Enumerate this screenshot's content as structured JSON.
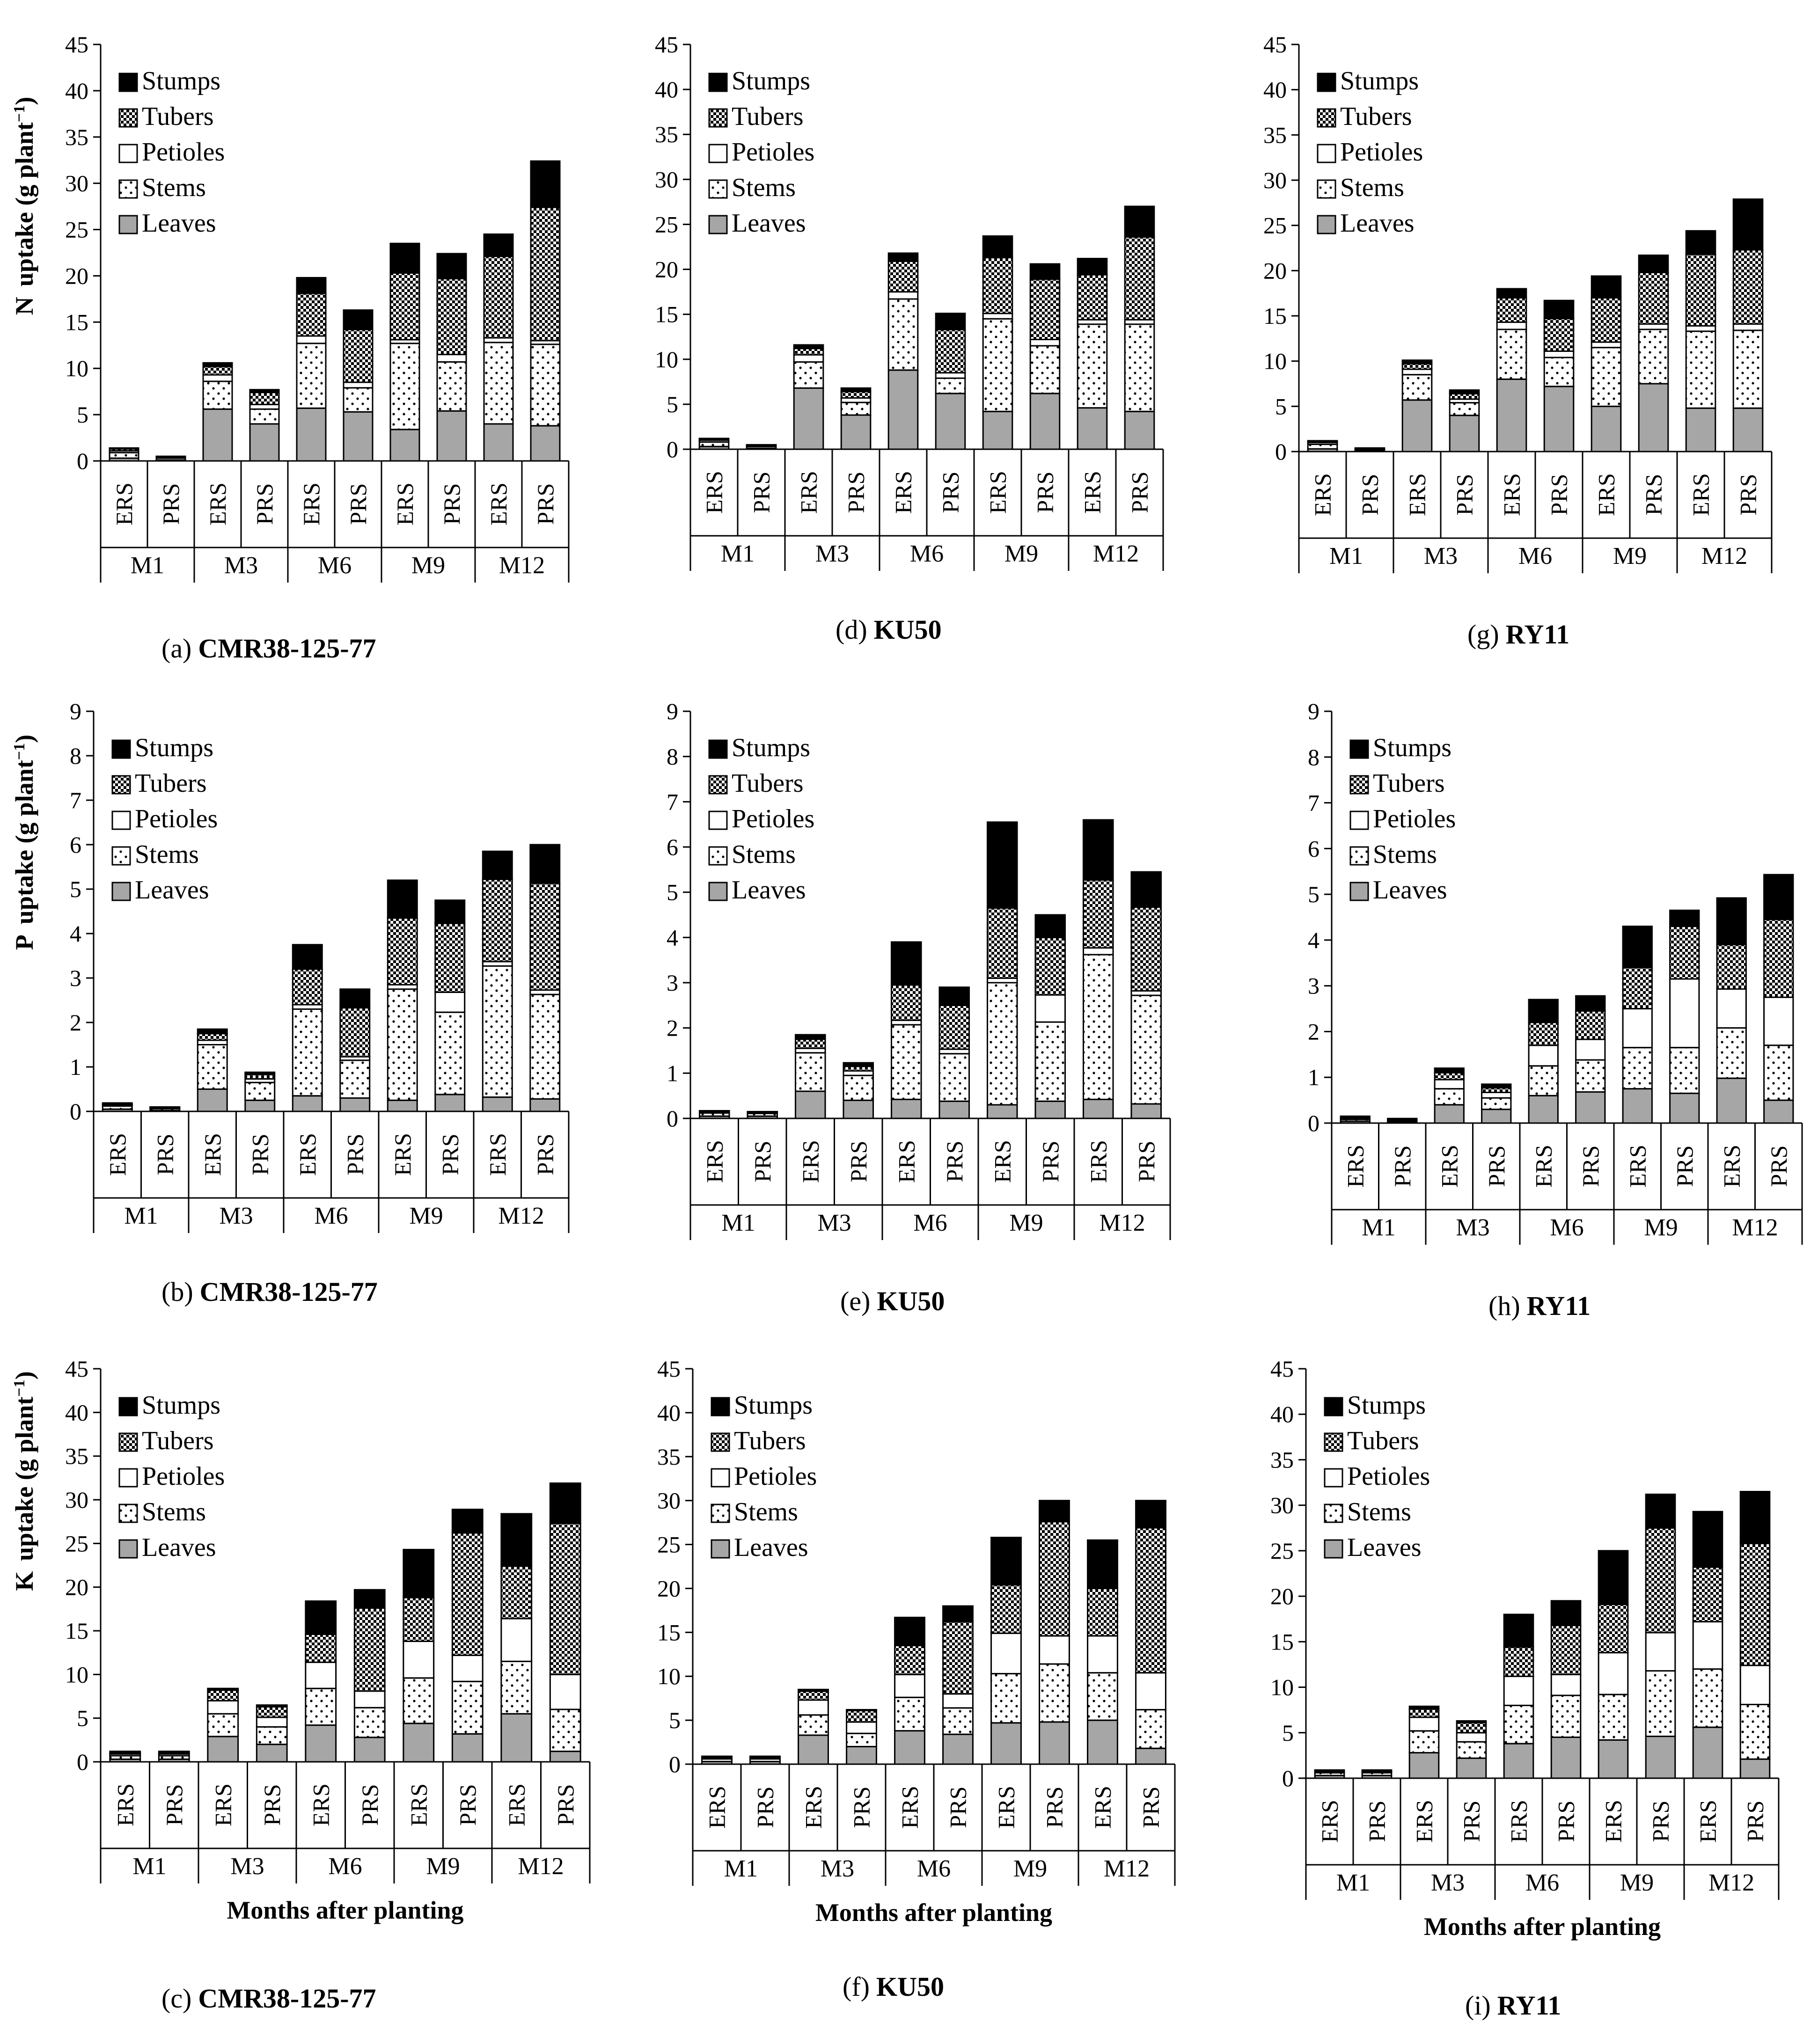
{
  "figure": {
    "layer_names": [
      "Leaves",
      "Stems",
      "Petioles",
      "Tubers",
      "Stumps"
    ],
    "x_axis_title": "Months after planting",
    "group_labels": [
      "M1",
      "M3",
      "M6",
      "M9",
      "M12"
    ],
    "bar_labels": [
      "ERS",
      "PRS"
    ]
  },
  "colors": {
    "Leaves": "#a6a6a6",
    "Stems": "#ffffff",
    "Petioles": "#ffffff",
    "Tubers": "#ffffff",
    "Stumps": "#000000",
    "line": "#000000"
  },
  "chart_data": [
    {
      "id": "a",
      "type": "bar",
      "stacked": true,
      "caption_prefix": "(a)",
      "caption_name": "CMR38-125-77",
      "ylabel_nutrient": "N",
      "ylabel_unit": "uptake (g plant",
      "ylim": [
        0,
        45
      ],
      "ystep": 5,
      "legend_order": [
        "Stumps",
        "Tubers",
        "Petioles",
        "Stems",
        "Leaves"
      ],
      "categories": [
        "ERS",
        "PRS",
        "ERS",
        "PRS",
        "ERS",
        "PRS",
        "ERS",
        "PRS",
        "ERS",
        "PRS"
      ],
      "groups": [
        "M1",
        "M3",
        "M6",
        "M9",
        "M12"
      ],
      "series": [
        {
          "name": "Leaves",
          "values": [
            0.3,
            0.1,
            5.6,
            4.0,
            5.7,
            5.3,
            3.4,
            5.4,
            4.0,
            3.8
          ]
        },
        {
          "name": "Stems",
          "values": [
            0.6,
            0.2,
            3.0,
            1.6,
            7.0,
            2.6,
            9.3,
            5.3,
            8.8,
            8.8
          ]
        },
        {
          "name": "Petioles",
          "values": [
            0.2,
            0.1,
            0.7,
            0.5,
            0.8,
            0.6,
            0.4,
            0.8,
            0.5,
            0.4
          ]
        },
        {
          "name": "Tubers",
          "values": [
            0.2,
            0.0,
            0.9,
            1.3,
            4.6,
            5.7,
            7.2,
            8.2,
            8.8,
            14.4
          ]
        },
        {
          "name": "Stumps",
          "values": [
            0.1,
            0.1,
            0.4,
            0.3,
            1.7,
            2.1,
            3.2,
            2.7,
            2.4,
            5.0
          ]
        }
      ]
    },
    {
      "id": "d",
      "type": "bar",
      "stacked": true,
      "caption_prefix": "(d)",
      "caption_name": "KU50",
      "ylabel_nutrient": "",
      "ylabel_unit": "",
      "ylim": [
        0,
        45
      ],
      "ystep": 5,
      "legend_order": [
        "Stumps",
        "Tubers",
        "Petioles",
        "Stems",
        "Leaves"
      ],
      "categories": [
        "ERS",
        "PRS",
        "ERS",
        "PRS",
        "ERS",
        "PRS",
        "ERS",
        "PRS",
        "ERS",
        "PRS"
      ],
      "groups": [
        "M1",
        "M3",
        "M6",
        "M9",
        "M12"
      ],
      "series": [
        {
          "name": "Leaves",
          "values": [
            0.3,
            0.1,
            6.8,
            3.8,
            8.8,
            6.2,
            4.2,
            6.2,
            4.6,
            4.2
          ]
        },
        {
          "name": "Stems",
          "values": [
            0.5,
            0.2,
            2.9,
            1.4,
            7.9,
            1.7,
            10.3,
            5.3,
            9.3,
            9.7
          ]
        },
        {
          "name": "Petioles",
          "values": [
            0.2,
            0.1,
            0.8,
            0.5,
            0.8,
            0.6,
            0.6,
            0.7,
            0.5,
            0.5
          ]
        },
        {
          "name": "Tubers",
          "values": [
            0.1,
            0.0,
            0.7,
            0.7,
            3.4,
            4.8,
            6.2,
            6.7,
            5.0,
            9.2
          ]
        },
        {
          "name": "Stumps",
          "values": [
            0.1,
            0.1,
            0.4,
            0.4,
            0.9,
            1.8,
            2.4,
            1.7,
            1.8,
            3.4
          ]
        }
      ]
    },
    {
      "id": "g",
      "type": "bar",
      "stacked": true,
      "caption_prefix": "(g)",
      "caption_name": "RY11",
      "ylabel_nutrient": "",
      "ylabel_unit": "",
      "ylim": [
        0,
        45
      ],
      "ystep": 5,
      "legend_order": [
        "Stumps",
        "Tubers",
        "Petioles",
        "Stems",
        "Leaves"
      ],
      "categories": [
        "ERS",
        "PRS",
        "ERS",
        "PRS",
        "ERS",
        "PRS",
        "ERS",
        "PRS",
        "ERS",
        "PRS"
      ],
      "groups": [
        "M1",
        "M3",
        "M6",
        "M9",
        "M12"
      ],
      "series": [
        {
          "name": "Leaves",
          "values": [
            0.3,
            0.1,
            5.7,
            4.0,
            8.0,
            7.2,
            5.0,
            7.5,
            4.8,
            4.8
          ]
        },
        {
          "name": "Stems",
          "values": [
            0.5,
            0.1,
            2.8,
            1.4,
            5.5,
            3.2,
            6.5,
            6.0,
            8.5,
            8.6
          ]
        },
        {
          "name": "Petioles",
          "values": [
            0.2,
            0.1,
            0.6,
            0.4,
            0.8,
            0.7,
            0.6,
            0.6,
            0.6,
            0.7
          ]
        },
        {
          "name": "Tubers",
          "values": [
            0.1,
            0.0,
            0.6,
            0.6,
            2.7,
            3.6,
            4.9,
            5.7,
            7.9,
            8.2
          ]
        },
        {
          "name": "Stumps",
          "values": [
            0.1,
            0.1,
            0.4,
            0.4,
            1.0,
            2.0,
            2.4,
            1.9,
            2.6,
            5.6
          ]
        }
      ]
    },
    {
      "id": "b",
      "type": "bar",
      "stacked": true,
      "caption_prefix": "(b)",
      "caption_name": "CMR38-125-77",
      "ylabel_nutrient": "P",
      "ylabel_unit": "uptake (g plant",
      "ylim": [
        0,
        9
      ],
      "ystep": 1,
      "legend_order": [
        "Stumps",
        "Tubers",
        "Petioles",
        "Stems",
        "Leaves"
      ],
      "categories": [
        "ERS",
        "PRS",
        "ERS",
        "PRS",
        "ERS",
        "PRS",
        "ERS",
        "PRS",
        "ERS",
        "PRS"
      ],
      "groups": [
        "M1",
        "M3",
        "M6",
        "M9",
        "M12"
      ],
      "series": [
        {
          "name": "Leaves",
          "values": [
            0.05,
            0.02,
            0.5,
            0.25,
            0.35,
            0.3,
            0.25,
            0.38,
            0.32,
            0.28
          ]
        },
        {
          "name": "Stems",
          "values": [
            0.07,
            0.04,
            1.0,
            0.4,
            1.95,
            0.85,
            2.5,
            1.85,
            2.95,
            2.35
          ]
        },
        {
          "name": "Petioles",
          "values": [
            0.03,
            0.02,
            0.1,
            0.08,
            0.1,
            0.08,
            0.1,
            0.45,
            0.1,
            0.1
          ]
        },
        {
          "name": "Tubers",
          "values": [
            0.02,
            0.01,
            0.15,
            0.1,
            0.8,
            1.1,
            1.5,
            1.55,
            1.85,
            2.4
          ]
        },
        {
          "name": "Stumps",
          "values": [
            0.02,
            0.01,
            0.1,
            0.05,
            0.55,
            0.42,
            0.85,
            0.52,
            0.63,
            0.87
          ]
        }
      ]
    },
    {
      "id": "e",
      "type": "bar",
      "stacked": true,
      "caption_prefix": "(e)",
      "caption_name": "KU50",
      "ylabel_nutrient": "",
      "ylabel_unit": "",
      "ylim": [
        0,
        9
      ],
      "ystep": 1,
      "legend_order": [
        "Stumps",
        "Tubers",
        "Petioles",
        "Stems",
        "Leaves"
      ],
      "categories": [
        "ERS",
        "PRS",
        "ERS",
        "PRS",
        "ERS",
        "PRS",
        "ERS",
        "PRS",
        "ERS",
        "PRS"
      ],
      "groups": [
        "M1",
        "M3",
        "M6",
        "M9",
        "M12"
      ],
      "series": [
        {
          "name": "Leaves",
          "values": [
            0.05,
            0.05,
            0.6,
            0.4,
            0.42,
            0.38,
            0.3,
            0.38,
            0.42,
            0.32
          ]
        },
        {
          "name": "Stems",
          "values": [
            0.07,
            0.06,
            0.85,
            0.55,
            1.65,
            1.05,
            2.7,
            1.75,
            3.2,
            2.4
          ]
        },
        {
          "name": "Petioles",
          "values": [
            0.02,
            0.02,
            0.1,
            0.1,
            0.1,
            0.1,
            0.1,
            0.6,
            0.15,
            0.1
          ]
        },
        {
          "name": "Tubers",
          "values": [
            0.01,
            0.01,
            0.2,
            0.1,
            0.78,
            0.97,
            1.55,
            1.27,
            1.5,
            1.85
          ]
        },
        {
          "name": "Stumps",
          "values": [
            0.02,
            0.01,
            0.1,
            0.08,
            0.95,
            0.4,
            1.9,
            0.5,
            1.33,
            0.78
          ]
        }
      ]
    },
    {
      "id": "h",
      "type": "bar",
      "stacked": true,
      "caption_prefix": "(h)",
      "caption_name": "RY11",
      "ylabel_nutrient": "",
      "ylabel_unit": "",
      "ylim": [
        0,
        9
      ],
      "ystep": 1,
      "legend_order": [
        "Stumps",
        "Tubers",
        "Petioles",
        "Stems",
        "Leaves"
      ],
      "categories": [
        "ERS",
        "PRS",
        "ERS",
        "PRS",
        "ERS",
        "PRS",
        "ERS",
        "PRS",
        "ERS",
        "PRS"
      ],
      "groups": [
        "M1",
        "M3",
        "M6",
        "M9",
        "M12"
      ],
      "series": [
        {
          "name": "Leaves",
          "values": [
            0.04,
            0.03,
            0.4,
            0.3,
            0.6,
            0.68,
            0.75,
            0.65,
            0.98,
            0.5
          ]
        },
        {
          "name": "Stems",
          "values": [
            0.04,
            0.03,
            0.35,
            0.25,
            0.65,
            0.7,
            0.9,
            1.0,
            1.1,
            1.2
          ]
        },
        {
          "name": "Petioles",
          "values": [
            0.02,
            0.01,
            0.2,
            0.12,
            0.45,
            0.45,
            0.85,
            1.5,
            0.85,
            1.05
          ]
        },
        {
          "name": "Tubers",
          "values": [
            0.02,
            0.01,
            0.15,
            0.1,
            0.5,
            0.62,
            0.9,
            1.15,
            0.97,
            1.7
          ]
        },
        {
          "name": "Stumps",
          "values": [
            0.03,
            0.02,
            0.1,
            0.08,
            0.5,
            0.33,
            0.9,
            0.35,
            1.02,
            0.98
          ]
        }
      ]
    },
    {
      "id": "c",
      "type": "bar",
      "stacked": true,
      "caption_prefix": "(c)",
      "caption_name": "CMR38-125-77",
      "ylabel_nutrient": "K",
      "ylabel_unit": "uptake (g plant",
      "ylim": [
        0,
        45
      ],
      "ystep": 5,
      "legend_order": [
        "Stumps",
        "Tubers",
        "Petioles",
        "Stems",
        "Leaves"
      ],
      "categories": [
        "ERS",
        "PRS",
        "ERS",
        "PRS",
        "ERS",
        "PRS",
        "ERS",
        "PRS",
        "ERS",
        "PRS"
      ],
      "groups": [
        "M1",
        "M3",
        "M6",
        "M9",
        "M12"
      ],
      "series": [
        {
          "name": "Leaves",
          "values": [
            0.3,
            0.3,
            2.9,
            2.0,
            4.2,
            2.8,
            4.4,
            3.2,
            5.5,
            1.2
          ]
        },
        {
          "name": "Stems",
          "values": [
            0.4,
            0.4,
            2.6,
            2.0,
            4.2,
            3.4,
            5.2,
            6.0,
            6.0,
            4.8
          ]
        },
        {
          "name": "Petioles",
          "values": [
            0.2,
            0.2,
            1.5,
            1.1,
            3.0,
            1.9,
            4.2,
            3.0,
            4.9,
            4.0
          ]
        },
        {
          "name": "Tubers",
          "values": [
            0.1,
            0.1,
            1.2,
            1.2,
            3.2,
            9.5,
            5.0,
            14.0,
            6.0,
            17.3
          ]
        },
        {
          "name": "Stumps",
          "values": [
            0.2,
            0.2,
            0.2,
            0.2,
            3.8,
            2.1,
            5.5,
            2.7,
            6.0,
            4.6
          ]
        }
      ]
    },
    {
      "id": "f",
      "type": "bar",
      "stacked": true,
      "caption_prefix": "(f)",
      "caption_name": "KU50",
      "ylabel_nutrient": "",
      "ylabel_unit": "",
      "ylim": [
        0,
        45
      ],
      "ystep": 5,
      "legend_order": [
        "Stumps",
        "Tubers",
        "Petioles",
        "Stems",
        "Leaves"
      ],
      "categories": [
        "ERS",
        "PRS",
        "ERS",
        "PRS",
        "ERS",
        "PRS",
        "ERS",
        "PRS",
        "ERS",
        "PRS"
      ],
      "groups": [
        "M1",
        "M3",
        "M6",
        "M9",
        "M12"
      ],
      "series": [
        {
          "name": "Leaves",
          "values": [
            0.3,
            0.3,
            3.3,
            2.0,
            3.8,
            3.4,
            4.7,
            4.8,
            5.0,
            1.8
          ]
        },
        {
          "name": "Stems",
          "values": [
            0.3,
            0.3,
            2.3,
            1.5,
            3.8,
            3.0,
            5.6,
            6.6,
            5.4,
            4.4
          ]
        },
        {
          "name": "Petioles",
          "values": [
            0.1,
            0.1,
            1.7,
            1.3,
            2.6,
            1.6,
            4.6,
            3.2,
            4.2,
            4.2
          ]
        },
        {
          "name": "Tubers",
          "values": [
            0.1,
            0.1,
            1.0,
            1.3,
            3.3,
            8.2,
            5.5,
            13.0,
            5.4,
            16.5
          ]
        },
        {
          "name": "Stumps",
          "values": [
            0.1,
            0.1,
            0.2,
            0.1,
            3.2,
            1.8,
            5.4,
            2.4,
            5.5,
            3.1
          ]
        }
      ]
    },
    {
      "id": "i",
      "type": "bar",
      "stacked": true,
      "caption_prefix": "(i)",
      "caption_name": "RY11",
      "ylabel_nutrient": "",
      "ylabel_unit": "",
      "ylim": [
        0,
        45
      ],
      "ystep": 5,
      "legend_order": [
        "Stumps",
        "Tubers",
        "Petioles",
        "Stems",
        "Leaves"
      ],
      "categories": [
        "ERS",
        "PRS",
        "ERS",
        "PRS",
        "ERS",
        "PRS",
        "ERS",
        "PRS",
        "ERS",
        "PRS"
      ],
      "groups": [
        "M1",
        "M3",
        "M6",
        "M9",
        "M12"
      ],
      "series": [
        {
          "name": "Leaves",
          "values": [
            0.3,
            0.3,
            2.8,
            2.2,
            3.8,
            4.5,
            4.2,
            4.6,
            5.6,
            2.1
          ]
        },
        {
          "name": "Stems",
          "values": [
            0.3,
            0.3,
            2.4,
            1.8,
            4.2,
            4.6,
            5.0,
            7.2,
            6.4,
            6.0
          ]
        },
        {
          "name": "Petioles",
          "values": [
            0.1,
            0.1,
            1.5,
            1.0,
            3.2,
            2.3,
            4.6,
            4.2,
            5.2,
            4.3
          ]
        },
        {
          "name": "Tubers",
          "values": [
            0.1,
            0.1,
            0.9,
            1.1,
            3.2,
            5.4,
            5.3,
            11.5,
            6.0,
            13.4
          ]
        },
        {
          "name": "Stumps",
          "values": [
            0.1,
            0.1,
            0.3,
            0.2,
            3.6,
            2.7,
            5.9,
            3.7,
            6.1,
            5.7
          ]
        }
      ]
    }
  ]
}
